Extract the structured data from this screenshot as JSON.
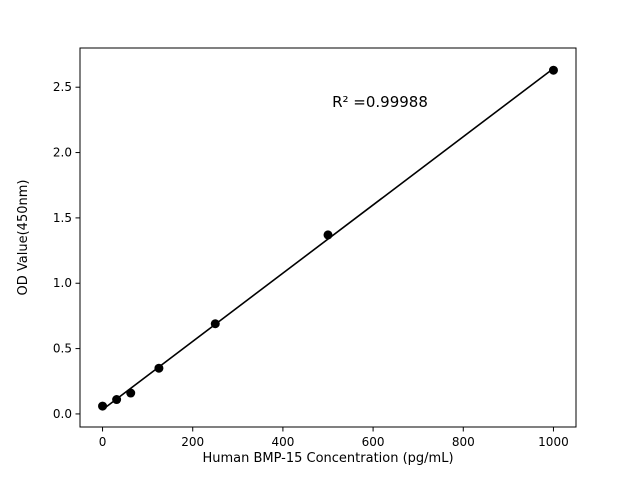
{
  "figure": {
    "background": "#ffffff"
  },
  "chart_data": {
    "type": "scatter",
    "title": "",
    "xlabel": "Human BMP-15 Concentration (pg/mL)",
    "ylabel": "OD Value(450nm)",
    "x": [
      0,
      31.25,
      62.5,
      125,
      250,
      500,
      1000
    ],
    "y": [
      0.06,
      0.11,
      0.16,
      0.35,
      0.69,
      1.37,
      2.63
    ],
    "xticks": [
      0,
      200,
      400,
      600,
      800,
      1000
    ],
    "yticks": [
      0.0,
      0.5,
      1.0,
      1.5,
      2.0,
      2.5
    ],
    "xlim": [
      -50,
      1050
    ],
    "ylim": [
      -0.1,
      2.8
    ],
    "annotation": "R² =0.99988",
    "marker_color": "#000000",
    "line_color": "#000000",
    "axis_color": "#000000",
    "grid": false,
    "legend_position": "none"
  }
}
